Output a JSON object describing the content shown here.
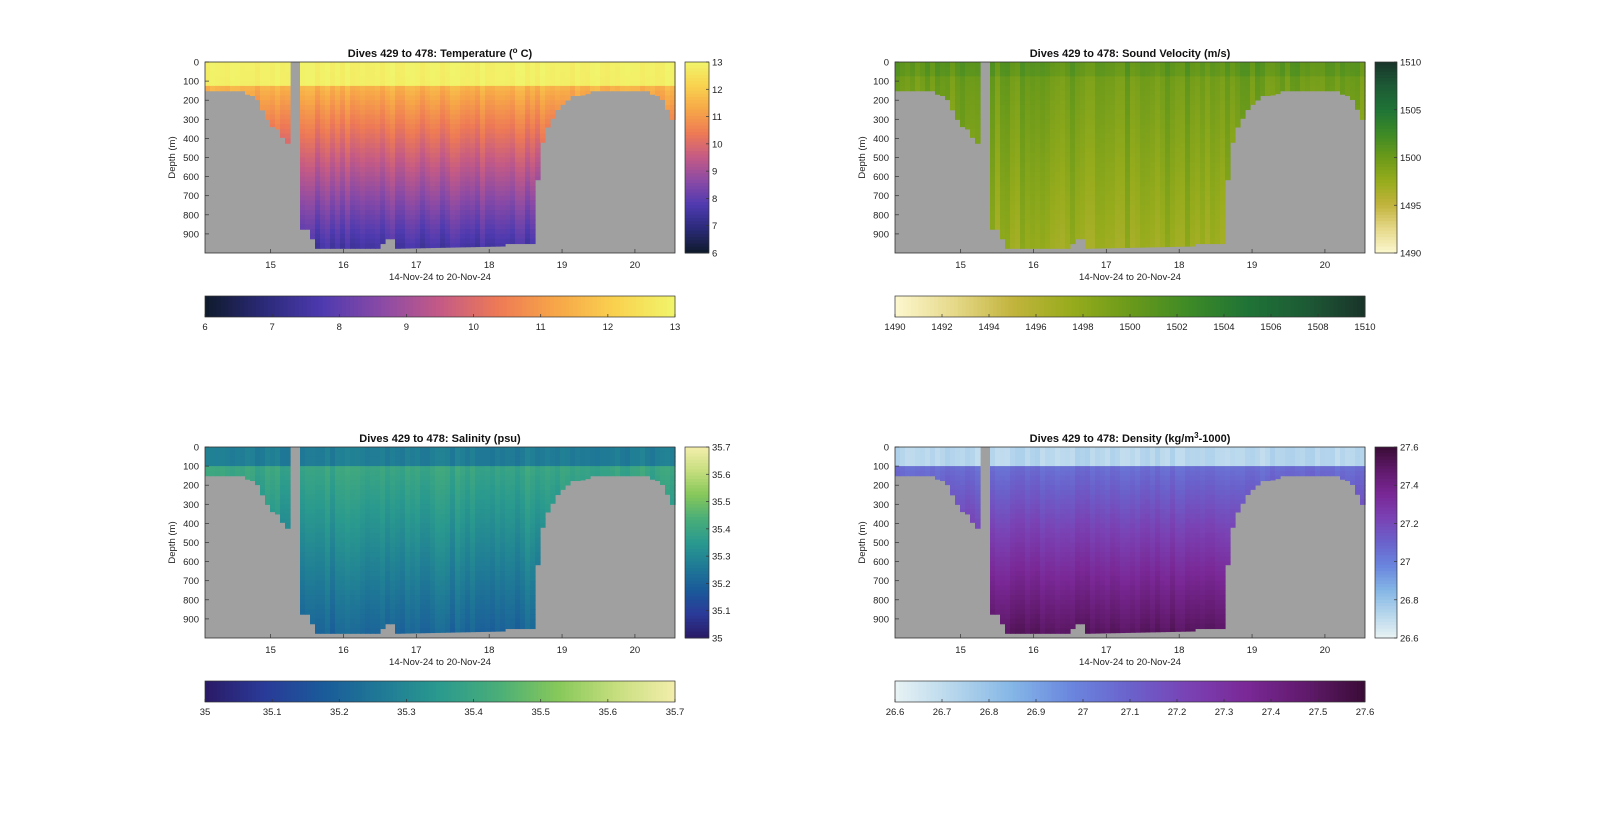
{
  "figure": {
    "background": "#ffffff"
  },
  "chart_data": [
    {
      "type": "heatmap",
      "title": "Dives 429 to 478: Temperature (° C)",
      "title_parts": {
        "pre": "Dives 429 to 478: Temperature (",
        "sup": "o",
        "post": " C)"
      },
      "xlabel": "14-Nov-24 to 20-Nov-24",
      "ylabel": "Depth (m)",
      "xlim": [
        14.1,
        20.55
      ],
      "ylim": [
        0,
        1000
      ],
      "y_reversed": true,
      "x_ticks": [
        15,
        16,
        17,
        18,
        19,
        20
      ],
      "y_ticks": [
        0,
        100,
        200,
        300,
        400,
        500,
        600,
        700,
        800,
        900
      ],
      "value_range": [
        6,
        13
      ],
      "side_colorbar_ticks": [
        6,
        7,
        8,
        9,
        10,
        11,
        12,
        13
      ],
      "bottom_colorbar_ticks": [
        6,
        7,
        8,
        9,
        10,
        11,
        12,
        13
      ],
      "colormap": [
        "#0f1a2b",
        "#2a2a78",
        "#4e3ab0",
        "#8a4aa6",
        "#c45a86",
        "#ee7a55",
        "#f7a748",
        "#f9d24f",
        "#f1f56b"
      ],
      "surface_value": 12.9,
      "deep_value": 7.4,
      "grid": false
    },
    {
      "type": "heatmap",
      "title": "Dives 429 to 478: Sound Velocity (m/s)",
      "title_parts": {
        "pre": "Dives 429 to 478: Sound Velocity (m/s)",
        "sup": "",
        "post": ""
      },
      "xlabel": "14-Nov-24 to 20-Nov-24",
      "ylabel": "Depth (m)",
      "xlim": [
        14.1,
        20.55
      ],
      "ylim": [
        0,
        1000
      ],
      "y_reversed": true,
      "x_ticks": [
        15,
        16,
        17,
        18,
        19,
        20
      ],
      "y_ticks": [
        0,
        100,
        200,
        300,
        400,
        500,
        600,
        700,
        800,
        900
      ],
      "value_range": [
        1490,
        1510
      ],
      "side_colorbar_ticks": [
        1490,
        1495,
        1500,
        1505,
        1510
      ],
      "bottom_colorbar_ticks": [
        1490,
        1492,
        1494,
        1496,
        1498,
        1500,
        1502,
        1504,
        1506,
        1508,
        1510
      ],
      "colormap": [
        "#fdf7cf",
        "#e6d98a",
        "#c2b43d",
        "#97ac1c",
        "#6b9a1a",
        "#3d8a26",
        "#1f7336",
        "#1d5a35",
        "#19342a"
      ],
      "surface_value": 1500.0,
      "deep_value": 1497.2,
      "grid": false
    },
    {
      "type": "heatmap",
      "title": "Dives 429 to 478: Salinity (psu)",
      "title_parts": {
        "pre": "Dives 429 to 478: Salinity (psu)",
        "sup": "",
        "post": ""
      },
      "xlabel": "14-Nov-24 to 20-Nov-24",
      "ylabel": "Depth (m)",
      "xlim": [
        14.1,
        20.55
      ],
      "ylim": [
        0,
        1000
      ],
      "y_reversed": true,
      "x_ticks": [
        15,
        16,
        17,
        18,
        19,
        20
      ],
      "y_ticks": [
        0,
        100,
        200,
        300,
        400,
        500,
        600,
        700,
        800,
        900
      ],
      "value_range": [
        35,
        35.7
      ],
      "side_colorbar_ticks": [
        35,
        35.1,
        35.2,
        35.3,
        35.4,
        35.5,
        35.6,
        35.7
      ],
      "bottom_colorbar_ticks": [
        35,
        35.1,
        35.2,
        35.3,
        35.4,
        35.5,
        35.6,
        35.7
      ],
      "colormap": [
        "#2a1a66",
        "#2a3a98",
        "#1a5a9a",
        "#1f7a96",
        "#2a9a8e",
        "#4aae78",
        "#86c85a",
        "#c6de7e",
        "#f4eeac"
      ],
      "surface_value": 35.27,
      "mid_value": 35.42,
      "deep_value": 35.2,
      "grid": false
    },
    {
      "type": "heatmap",
      "title": "Dives 429 to 478: Density (kg/m³-1000)",
      "title_parts": {
        "pre": "Dives 429 to 478: Density (kg/m",
        "sup": "3",
        "post": "-1000)"
      },
      "xlabel": "14-Nov-24 to 20-Nov-24",
      "ylabel": "Depth (m)",
      "xlim": [
        14.1,
        20.55
      ],
      "ylim": [
        0,
        1000
      ],
      "y_reversed": true,
      "x_ticks": [
        15,
        16,
        17,
        18,
        19,
        20
      ],
      "y_ticks": [
        0,
        100,
        200,
        300,
        400,
        500,
        600,
        700,
        800,
        900
      ],
      "value_range": [
        26.6,
        27.6
      ],
      "side_colorbar_ticks": [
        26.6,
        26.8,
        27,
        27.2,
        27.4,
        27.6
      ],
      "bottom_colorbar_ticks": [
        26.6,
        26.7,
        26.8,
        26.9,
        27,
        27.1,
        27.2,
        27.3,
        27.4,
        27.5,
        27.6
      ],
      "colormap": [
        "#e8f3f4",
        "#b6d6ec",
        "#84b6e6",
        "#6a86de",
        "#6a62cc",
        "#7a42b4",
        "#7a2896",
        "#601a6c",
        "#3a0c36"
      ],
      "surface_value": 26.72,
      "deep_value": 27.52,
      "grid": false
    }
  ],
  "bathymetry": {
    "nodata_color": "#a0a0a0",
    "profile": [
      {
        "t": 14.1,
        "bottom": 155
      },
      {
        "t": 14.3,
        "bottom": 155
      },
      {
        "t": 14.6,
        "bottom": 160
      },
      {
        "t": 14.8,
        "bottom": 180
      },
      {
        "t": 14.9,
        "bottom": 260
      },
      {
        "t": 15.0,
        "bottom": 330
      },
      {
        "t": 15.1,
        "bottom": 360
      },
      {
        "t": 15.25,
        "bottom": 440
      },
      {
        "t": 15.3,
        "bottom": 0
      },
      {
        "t": 15.4,
        "bottom": 0
      },
      {
        "t": 15.42,
        "bottom": 880
      },
      {
        "t": 15.55,
        "bottom": 880
      },
      {
        "t": 15.6,
        "bottom": 975
      },
      {
        "t": 16.5,
        "bottom": 975
      },
      {
        "t": 16.58,
        "bottom": 930
      },
      {
        "t": 16.7,
        "bottom": 930
      },
      {
        "t": 16.72,
        "bottom": 975
      },
      {
        "t": 18.55,
        "bottom": 960
      },
      {
        "t": 18.62,
        "bottom": 960
      },
      {
        "t": 18.68,
        "bottom": 480
      },
      {
        "t": 18.8,
        "bottom": 340
      },
      {
        "t": 18.95,
        "bottom": 240
      },
      {
        "t": 19.1,
        "bottom": 190
      },
      {
        "t": 19.4,
        "bottom": 160
      },
      {
        "t": 20.0,
        "bottom": 150
      },
      {
        "t": 20.2,
        "bottom": 160
      },
      {
        "t": 20.4,
        "bottom": 200
      },
      {
        "t": 20.5,
        "bottom": 300
      },
      {
        "t": 20.55,
        "bottom": 310
      }
    ]
  }
}
